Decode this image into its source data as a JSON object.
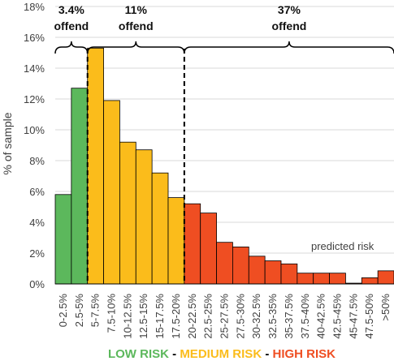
{
  "chart_data": {
    "type": "bar",
    "ylabel": "% of sample",
    "yticks": [
      "0%",
      "2%",
      "4%",
      "6%",
      "8%",
      "10%",
      "12%",
      "14%",
      "16%",
      "18%"
    ],
    "ylim": [
      0,
      18
    ],
    "categories": [
      "0-2.5%",
      "2.5-5%",
      "5-7.5%",
      "7.5-10%",
      "10-12.5%",
      "12.5-15%",
      "15-17.5%",
      "17.5-20%",
      "20-22.5%",
      "22.5-25%",
      "25-27.5%",
      "27.5-30%",
      "30-32.5%",
      "32.5-35%",
      "35-37.5%",
      "37.5-40%",
      "40-42.5%",
      "42.5-45%",
      "45-47.5%",
      "47.5-50%",
      ">50%"
    ],
    "values": [
      5.8,
      12.7,
      15.3,
      11.9,
      9.2,
      8.7,
      7.2,
      5.6,
      5.2,
      4.6,
      2.7,
      2.4,
      1.8,
      1.5,
      1.3,
      0.7,
      0.7,
      0.7,
      0.05,
      0.4,
      0.85
    ],
    "groups": [
      {
        "name": "LOW RISK",
        "start": 0,
        "end": 1,
        "color": "#5cb85c",
        "offend": "3.4%",
        "offend_label": "offend"
      },
      {
        "name": "MEDIUM RISK",
        "start": 2,
        "end": 7,
        "color": "#fbbc1b",
        "offend": "11%",
        "offend_label": "offend"
      },
      {
        "name": "HIGH RISK",
        "start": 8,
        "end": 20,
        "color": "#ef4e22",
        "offend": "37%",
        "offend_label": "offend"
      }
    ],
    "legend_separator": " - ",
    "annotation": "predicted risk",
    "grid": true
  }
}
